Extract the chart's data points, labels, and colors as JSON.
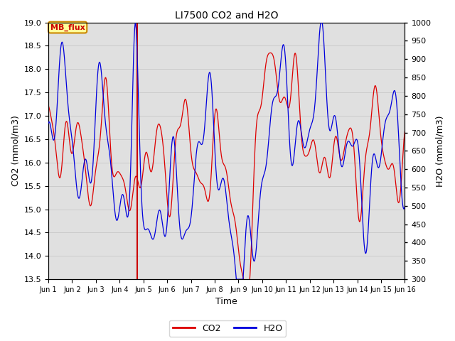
{
  "title": "LI7500 CO2 and H2O",
  "xlabel": "Time",
  "ylabel_left": "CO2 (mmol/m3)",
  "ylabel_right": "H2O (mmol/m3)",
  "co2_color": "#dd0000",
  "h2o_color": "#0000dd",
  "vline_color": "#cc0000",
  "vline_x": 4.75,
  "annotation_text": "MB_flux",
  "annotation_bg": "#ffff99",
  "annotation_border": "#cc8800",
  "co2_ylim": [
    13.5,
    19.0
  ],
  "h2o_ylim": [
    300,
    1000
  ],
  "co2_yticks": [
    13.5,
    14.0,
    14.5,
    15.0,
    15.5,
    16.0,
    16.5,
    17.0,
    17.5,
    18.0,
    18.5,
    19.0
  ],
  "h2o_yticks": [
    300,
    350,
    400,
    450,
    500,
    550,
    600,
    650,
    700,
    750,
    800,
    850,
    900,
    950,
    1000
  ],
  "x_ticks": [
    1,
    2,
    3,
    4,
    5,
    6,
    7,
    8,
    9,
    10,
    11,
    12,
    13,
    14,
    15,
    16
  ],
  "x_tick_labels": [
    "Jun 1",
    "Jun 2",
    "Jun 3",
    "Jun 4",
    "Jun 5",
    "Jun 6",
    "Jun 7",
    "Jun 8",
    "Jun 9",
    "Jun 10",
    "Jun 11",
    "Jun 12",
    "Jun 13",
    "Jun 14",
    "Jun 15",
    "Jun 16"
  ],
  "grid_color": "#c8c8c8",
  "bg_color": "#e0e0e0",
  "linewidth": 0.9,
  "figsize": [
    6.4,
    4.8
  ],
  "dpi": 100
}
